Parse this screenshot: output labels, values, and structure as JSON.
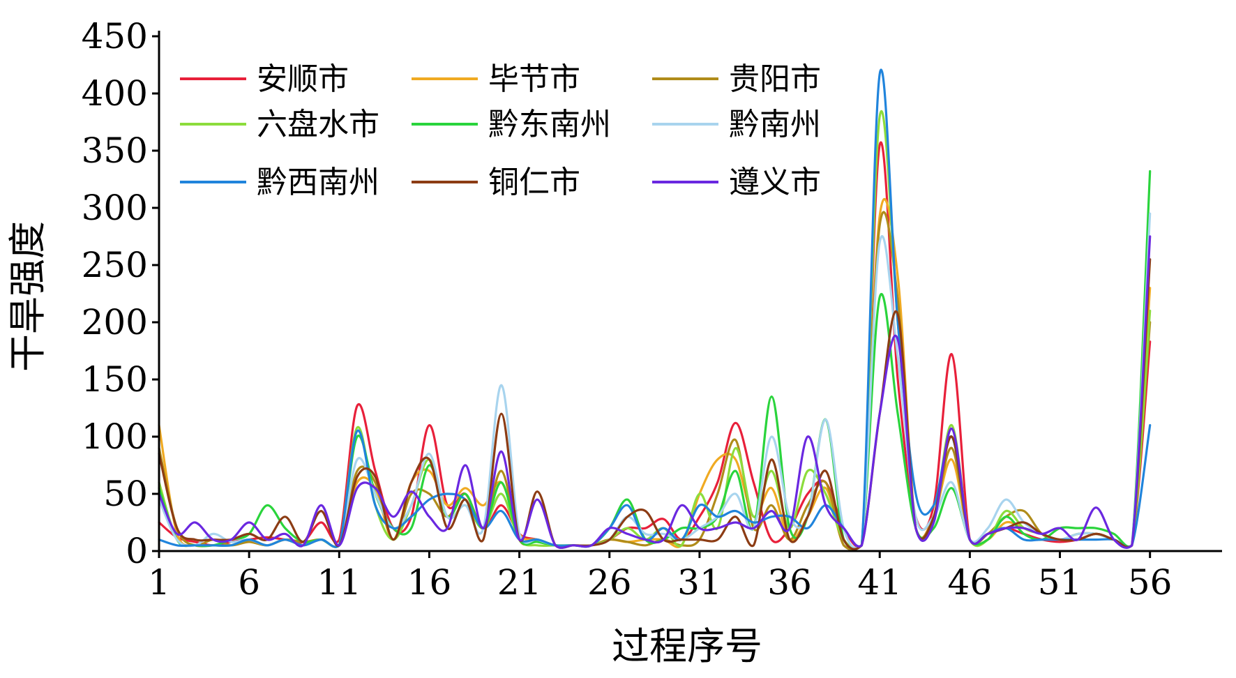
{
  "chart_data": {
    "type": "line",
    "title": "",
    "xlabel": "过程序号",
    "ylabel": "干旱强度",
    "ylim": [
      0,
      450
    ],
    "xlim": [
      1,
      60
    ],
    "x_ticks": [
      1,
      6,
      11,
      16,
      21,
      26,
      31,
      36,
      41,
      46,
      51,
      56
    ],
    "y_ticks": [
      0,
      50,
      100,
      150,
      200,
      250,
      300,
      350,
      400,
      450
    ],
    "grid": false,
    "legend_position": "top-left",
    "x": [
      1,
      2,
      3,
      4,
      5,
      6,
      7,
      8,
      9,
      10,
      11,
      12,
      13,
      14,
      15,
      16,
      17,
      18,
      19,
      20,
      21,
      22,
      23,
      24,
      25,
      26,
      27,
      28,
      29,
      30,
      31,
      32,
      33,
      34,
      35,
      36,
      37,
      38,
      39,
      40,
      41,
      42,
      43,
      44,
      45,
      46,
      47,
      48,
      49,
      50,
      51,
      52,
      53,
      54,
      55,
      56
    ],
    "series": [
      {
        "name": "安顺市",
        "color": "#e8203a",
        "values": [
          25,
          12,
          8,
          5,
          8,
          10,
          12,
          10,
          8,
          25,
          10,
          127,
          70,
          20,
          30,
          110,
          40,
          50,
          20,
          40,
          15,
          10,
          5,
          5,
          5,
          10,
          20,
          20,
          28,
          10,
          30,
          60,
          112,
          60,
          10,
          20,
          50,
          60,
          20,
          5,
          355,
          150,
          30,
          40,
          172,
          10,
          15,
          20,
          15,
          10,
          8,
          10,
          15,
          10,
          5,
          183
        ]
      },
      {
        "name": "毕节市",
        "color": "#f0aa22",
        "values": [
          110,
          15,
          5,
          5,
          5,
          8,
          5,
          10,
          5,
          10,
          5,
          60,
          55,
          10,
          60,
          70,
          40,
          55,
          40,
          60,
          15,
          10,
          5,
          5,
          5,
          10,
          8,
          10,
          10,
          5,
          50,
          80,
          80,
          30,
          55,
          10,
          30,
          55,
          5,
          5,
          293,
          240,
          20,
          30,
          80,
          10,
          10,
          25,
          20,
          15,
          10,
          15,
          15,
          10,
          5,
          230
        ]
      },
      {
        "name": "贵阳市",
        "color": "#b08c1a",
        "values": [
          90,
          20,
          5,
          10,
          5,
          8,
          5,
          10,
          8,
          10,
          5,
          70,
          60,
          10,
          50,
          50,
          30,
          50,
          20,
          70,
          10,
          10,
          5,
          5,
          5,
          10,
          8,
          5,
          10,
          5,
          10,
          50,
          97,
          20,
          40,
          10,
          40,
          60,
          5,
          5,
          285,
          220,
          20,
          30,
          90,
          10,
          15,
          30,
          35,
          15,
          10,
          10,
          15,
          10,
          5,
          200
        ]
      },
      {
        "name": "六盘水市",
        "color": "#8cdc3c",
        "values": [
          60,
          10,
          5,
          5,
          5,
          10,
          5,
          10,
          5,
          10,
          5,
          108,
          40,
          10,
          40,
          80,
          30,
          40,
          20,
          50,
          10,
          5,
          5,
          5,
          5,
          10,
          20,
          10,
          20,
          5,
          50,
          20,
          90,
          30,
          70,
          20,
          70,
          50,
          10,
          5,
          380,
          200,
          20,
          30,
          110,
          10,
          10,
          35,
          20,
          15,
          10,
          15,
          15,
          10,
          5,
          210
        ]
      },
      {
        "name": "黔东南州",
        "color": "#2ad43c",
        "values": [
          55,
          10,
          5,
          5,
          10,
          15,
          40,
          20,
          8,
          10,
          5,
          100,
          50,
          20,
          20,
          75,
          30,
          50,
          20,
          60,
          10,
          8,
          5,
          5,
          5,
          20,
          45,
          10,
          10,
          20,
          20,
          30,
          70,
          20,
          135,
          20,
          30,
          115,
          10,
          5,
          222,
          120,
          20,
          20,
          55,
          10,
          10,
          30,
          15,
          10,
          20,
          20,
          20,
          15,
          5,
          332
        ]
      },
      {
        "name": "黔南州",
        "color": "#a8d4ee",
        "values": [
          45,
          10,
          5,
          15,
          8,
          10,
          5,
          10,
          5,
          10,
          5,
          80,
          50,
          20,
          40,
          85,
          30,
          40,
          20,
          145,
          15,
          10,
          5,
          5,
          5,
          10,
          30,
          15,
          15,
          10,
          20,
          30,
          50,
          20,
          100,
          30,
          30,
          115,
          20,
          5,
          270,
          170,
          30,
          30,
          60,
          10,
          20,
          45,
          25,
          15,
          10,
          15,
          15,
          10,
          5,
          295
        ]
      },
      {
        "name": "黔西南州",
        "color": "#2084dc",
        "values": [
          10,
          5,
          5,
          5,
          5,
          10,
          5,
          10,
          5,
          10,
          5,
          105,
          40,
          20,
          30,
          45,
          50,
          45,
          20,
          35,
          10,
          10,
          5,
          5,
          5,
          20,
          40,
          10,
          20,
          10,
          40,
          30,
          35,
          25,
          30,
          30,
          20,
          40,
          20,
          5,
          417,
          200,
          50,
          40,
          100,
          10,
          15,
          20,
          10,
          10,
          10,
          10,
          10,
          10,
          5,
          110
        ]
      },
      {
        "name": "铜仁市",
        "color": "#8c3c14",
        "values": [
          85,
          20,
          10,
          10,
          10,
          15,
          10,
          30,
          8,
          35,
          5,
          65,
          65,
          10,
          60,
          80,
          20,
          45,
          10,
          120,
          10,
          52,
          5,
          5,
          5,
          10,
          30,
          35,
          10,
          10,
          10,
          10,
          30,
          5,
          80,
          10,
          30,
          70,
          10,
          5,
          120,
          207,
          20,
          30,
          100,
          10,
          15,
          20,
          25,
          15,
          10,
          10,
          15,
          10,
          5,
          255
        ]
      },
      {
        "name": "遵义市",
        "color": "#6a28e0",
        "values": [
          50,
          15,
          25,
          10,
          10,
          25,
          10,
          15,
          5,
          40,
          5,
          55,
          55,
          30,
          52,
          30,
          20,
          75,
          20,
          87,
          10,
          45,
          5,
          5,
          5,
          20,
          15,
          10,
          10,
          40,
          20,
          20,
          25,
          20,
          35,
          20,
          100,
          40,
          20,
          5,
          120,
          185,
          20,
          25,
          107,
          10,
          15,
          20,
          20,
          15,
          20,
          10,
          38,
          10,
          5,
          275
        ]
      }
    ]
  }
}
